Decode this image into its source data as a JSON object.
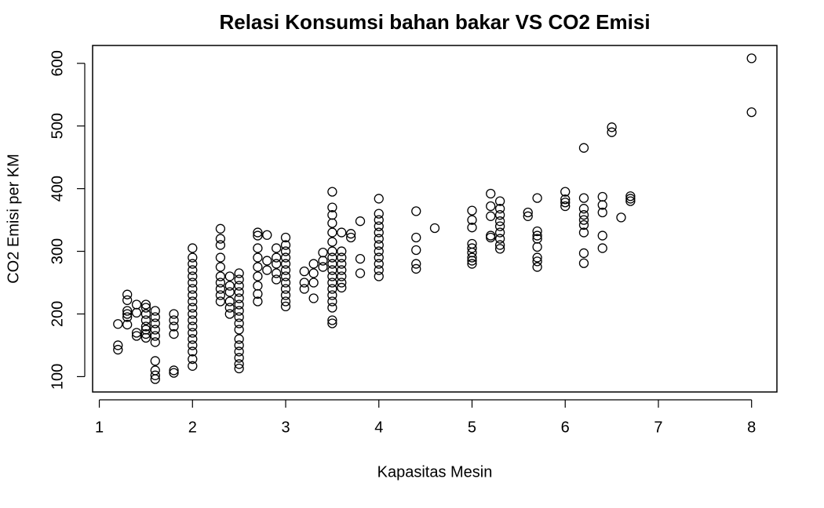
{
  "chart_data": {
    "type": "scatter",
    "title": "Relasi Konsumsi bahan bakar VS CO2 Emisi",
    "x_label": "Kapasitas Mesin",
    "y_label": "CO2 Emisi per KM",
    "xlim": [
      0.928,
      8.272
    ],
    "ylim": [
      75.5,
      628.5
    ],
    "xticks": [
      1,
      2,
      3,
      4,
      5,
      6,
      7,
      8
    ],
    "yticks": [
      100,
      200,
      300,
      400,
      500,
      600
    ],
    "color": "#000000",
    "x": [
      1.2,
      1.2,
      1.2,
      1.3,
      1.3,
      1.3,
      1.3,
      1.3,
      1.3,
      1.4,
      1.4,
      1.4,
      1.4,
      1.5,
      1.5,
      1.5,
      1.5,
      1.5,
      1.5,
      1.5,
      1.5,
      1.6,
      1.6,
      1.6,
      1.6,
      1.6,
      1.6,
      1.6,
      1.6,
      1.6,
      1.6,
      1.8,
      1.8,
      1.8,
      1.8,
      1.8,
      1.8,
      2.0,
      2.0,
      2.0,
      2.0,
      2.0,
      2.0,
      2.0,
      2.0,
      2.0,
      2.0,
      2.0,
      2.0,
      2.0,
      2.0,
      2.0,
      2.0,
      2.0,
      2.0,
      2.0,
      2.3,
      2.3,
      2.3,
      2.3,
      2.3,
      2.3,
      2.3,
      2.3,
      2.3,
      2.3,
      2.4,
      2.4,
      2.4,
      2.4,
      2.4,
      2.4,
      2.5,
      2.5,
      2.5,
      2.5,
      2.5,
      2.5,
      2.5,
      2.5,
      2.5,
      2.5,
      2.5,
      2.5,
      2.5,
      2.5,
      2.5,
      2.5,
      2.7,
      2.7,
      2.7,
      2.7,
      2.7,
      2.7,
      2.7,
      2.7,
      2.7,
      2.8,
      2.8,
      2.8,
      2.9,
      2.9,
      2.9,
      2.9,
      2.9,
      3.0,
      3.0,
      3.0,
      3.0,
      3.0,
      3.0,
      3.0,
      3.0,
      3.0,
      3.0,
      3.0,
      3.0,
      3.2,
      3.2,
      3.2,
      3.3,
      3.3,
      3.3,
      3.3,
      3.4,
      3.4,
      3.4,
      3.5,
      3.5,
      3.5,
      3.5,
      3.5,
      3.5,
      3.5,
      3.5,
      3.5,
      3.5,
      3.5,
      3.5,
      3.5,
      3.5,
      3.5,
      3.5,
      3.5,
      3.5,
      3.6,
      3.6,
      3.6,
      3.6,
      3.6,
      3.6,
      3.6,
      3.6,
      3.7,
      3.7,
      3.8,
      3.8,
      3.8,
      4.0,
      4.0,
      4.0,
      4.0,
      4.0,
      4.0,
      4.0,
      4.0,
      4.0,
      4.0,
      4.0,
      4.0,
      4.4,
      4.4,
      4.4,
      4.4,
      4.4,
      4.6,
      5.0,
      5.0,
      5.0,
      5.0,
      5.0,
      5.0,
      5.0,
      5.0,
      5.0,
      5.2,
      5.2,
      5.2,
      5.2,
      5.2,
      5.3,
      5.3,
      5.3,
      5.3,
      5.3,
      5.3,
      5.3,
      5.3,
      5.3,
      5.6,
      5.6,
      5.7,
      5.7,
      5.7,
      5.7,
      5.7,
      5.7,
      5.7,
      5.7,
      6.0,
      6.0,
      6.0,
      6.0,
      6.2,
      6.2,
      6.2,
      6.2,
      6.2,
      6.2,
      6.2,
      6.2,
      6.2,
      6.4,
      6.4,
      6.4,
      6.4,
      6.4,
      6.5,
      6.5,
      6.6,
      6.7,
      6.7,
      6.7,
      8.0,
      8.0
    ],
    "values": [
      184,
      150,
      143,
      231,
      222,
      205,
      200,
      195,
      183,
      215,
      202,
      170,
      165,
      215,
      210,
      200,
      190,
      180,
      175,
      168,
      162,
      205,
      195,
      185,
      175,
      165,
      155,
      125,
      110,
      102,
      96,
      200,
      190,
      180,
      168,
      110,
      106,
      305,
      290,
      280,
      270,
      260,
      250,
      240,
      230,
      220,
      210,
      200,
      190,
      180,
      170,
      160,
      150,
      140,
      128,
      117,
      336,
      320,
      310,
      290,
      275,
      260,
      250,
      240,
      230,
      220,
      260,
      245,
      235,
      220,
      210,
      200,
      265,
      255,
      245,
      235,
      225,
      215,
      205,
      195,
      185,
      175,
      160,
      150,
      140,
      130,
      120,
      113,
      330,
      325,
      305,
      290,
      275,
      260,
      245,
      232,
      220,
      326,
      285,
      270,
      305,
      290,
      280,
      265,
      255,
      322,
      310,
      300,
      290,
      280,
      270,
      260,
      250,
      240,
      230,
      220,
      212,
      268,
      250,
      240,
      280,
      265,
      250,
      225,
      298,
      285,
      275,
      395,
      370,
      358,
      345,
      330,
      315,
      300,
      290,
      280,
      270,
      260,
      250,
      240,
      230,
      220,
      210,
      190,
      185,
      330,
      300,
      290,
      280,
      270,
      260,
      250,
      242,
      328,
      322,
      348,
      288,
      265,
      384,
      360,
      350,
      340,
      330,
      320,
      310,
      300,
      290,
      280,
      270,
      260,
      364,
      322,
      302,
      280,
      272,
      337,
      365,
      350,
      338,
      312,
      305,
      298,
      290,
      285,
      280,
      392,
      372,
      356,
      325,
      322,
      380,
      368,
      358,
      348,
      340,
      330,
      320,
      310,
      304,
      362,
      356,
      385,
      332,
      325,
      320,
      307,
      290,
      284,
      275,
      395,
      383,
      378,
      372,
      465,
      385,
      368,
      358,
      350,
      342,
      330,
      297,
      281,
      387,
      374,
      362,
      325,
      305,
      498,
      490,
      354,
      388,
      384,
      380,
      608,
      522
    ]
  }
}
